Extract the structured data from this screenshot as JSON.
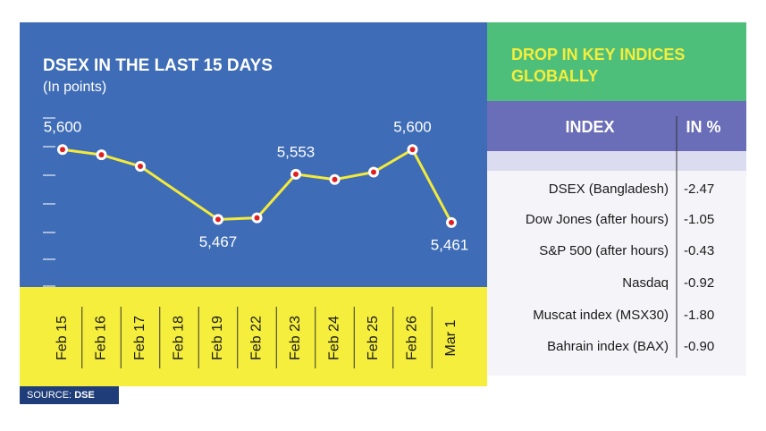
{
  "chart_data": {
    "type": "line",
    "title": "DSEX IN THE LAST 15 DAYS",
    "subtitle": "(In points)",
    "categories": [
      "Feb 15",
      "Feb 16",
      "Feb 17",
      "Feb 18",
      "Feb 19",
      "Feb 22",
      "Feb 23",
      "Feb 24",
      "Feb 25",
      "Feb 26",
      "Mar 1"
    ],
    "values": [
      5600,
      5590,
      5568,
      null,
      5467,
      5470,
      5553,
      5543,
      5557,
      5600,
      5461
    ],
    "value_labels": [
      "5,600",
      null,
      null,
      null,
      "5,467",
      null,
      "5,553",
      null,
      null,
      "5,600",
      "5,461"
    ],
    "color": "#f3ea3b",
    "ylim": [
      5340,
      5660
    ]
  },
  "table": {
    "title": "DROP IN KEY INDICES GLOBALLY",
    "header": [
      "INDEX",
      "IN %"
    ],
    "rows": [
      [
        "DSEX (Bangladesh)",
        "-2.47"
      ],
      [
        "Dow Jones (after hours)",
        "-1.05"
      ],
      [
        "S&P 500 (after hours)",
        "-0.43"
      ],
      [
        "Nasdaq",
        "-0.92"
      ],
      [
        "Muscat index (MSX30)",
        "-1.80"
      ],
      [
        "Bahrain index (BAX)",
        "-0.90"
      ]
    ]
  },
  "source": {
    "label": "SOURCE:",
    "value": "DSE"
  }
}
